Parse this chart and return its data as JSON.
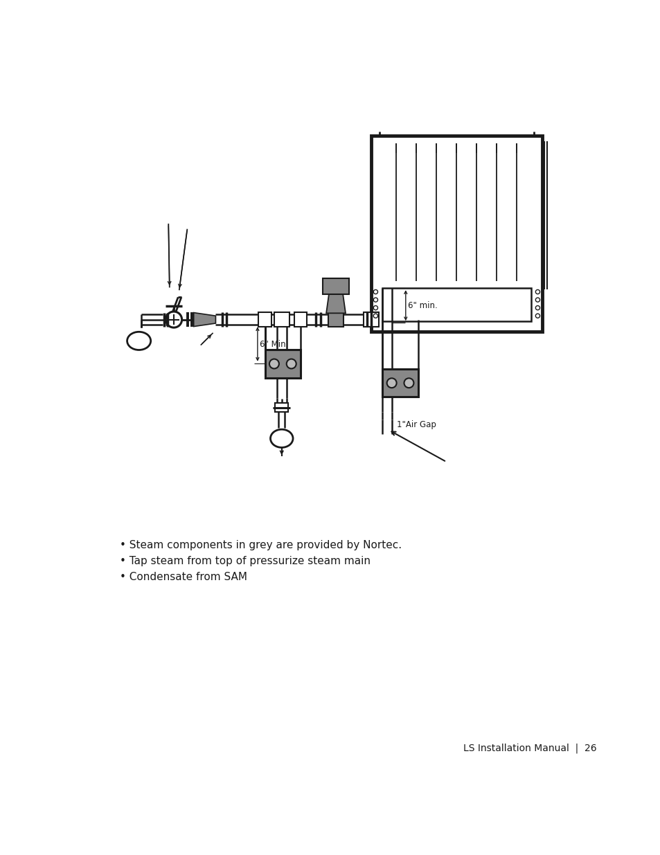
{
  "bg_color": "#ffffff",
  "lc": "#1a1a1a",
  "gray_fill": "#888888",
  "light_gray": "#bbbbbb",
  "dark_gray": "#555555",
  "bullet_lines": [
    "• Steam components in grey are provided by Nortec.",
    "• Tap steam from top of pressurize steam main",
    "• Condensate from SAM"
  ],
  "footer_text": "LS Installation Manual  |  26",
  "label_6min_1": "6\" Min.",
  "label_6min_2": "6\" min.",
  "label_air_gap": "1\"Air Gap"
}
